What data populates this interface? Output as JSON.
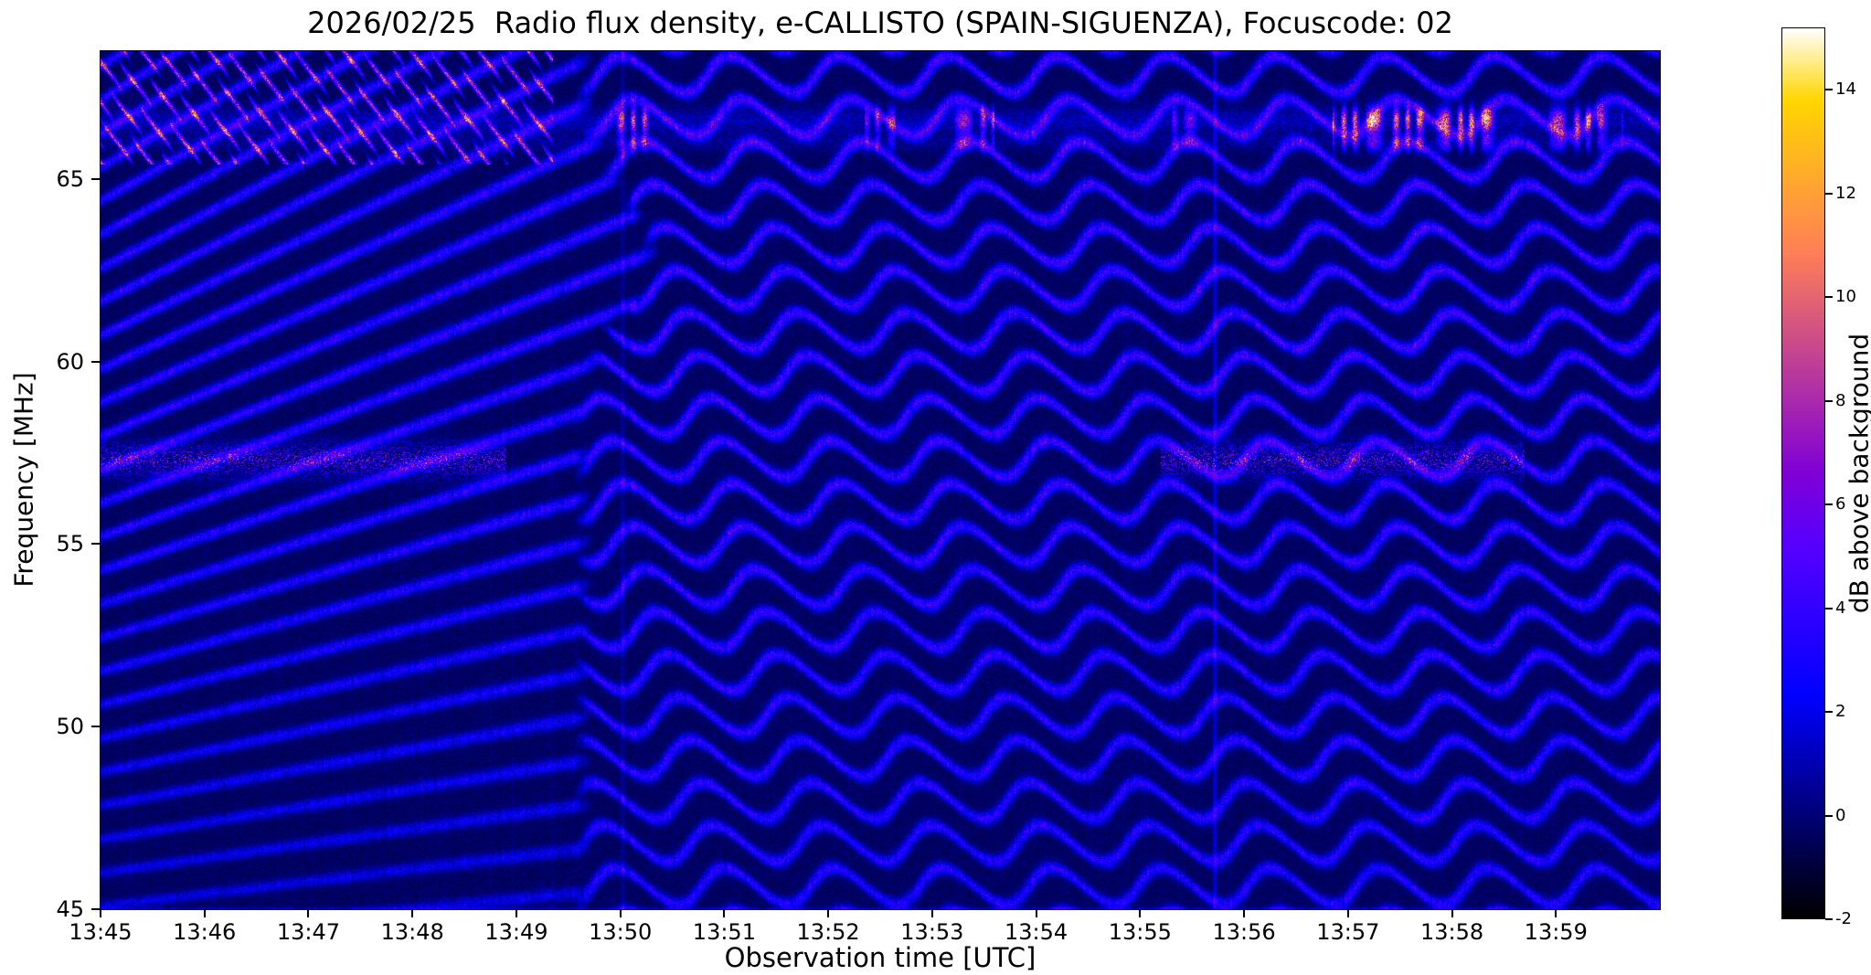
{
  "chart_data": {
    "type": "heatmap",
    "title": "2026/02/25  Radio flux density, e-CALLISTO (SPAIN-SIGUENZA), Focuscode: 02",
    "xlabel": "Observation time [UTC]",
    "ylabel": "Frequency [MHz]",
    "x_tick_labels": [
      "13:45",
      "13:46",
      "13:47",
      "13:48",
      "13:49",
      "13:50",
      "13:51",
      "13:52",
      "13:53",
      "13:54",
      "13:55",
      "13:56",
      "13:57",
      "13:58",
      "13:59"
    ],
    "x_range_min": [
      0,
      15
    ],
    "y_tick_values": [
      45,
      50,
      55,
      60,
      65
    ],
    "y_range_mhz": [
      45,
      68.5
    ],
    "grid": false,
    "colorbar": {
      "label": "dB above background",
      "tick_values": [
        -2,
        0,
        2,
        4,
        6,
        8,
        10,
        12,
        14
      ],
      "tick_labels": [
        "-2",
        "0",
        "2",
        "4",
        "6",
        "8",
        "10",
        "12",
        "14"
      ],
      "vmin": -2,
      "vmax": 15.2,
      "colormap": "gnuplot2",
      "position": "right"
    },
    "pattern": {
      "background_db": -0.7,
      "noise_db": 1.1,
      "bottom_edge_db": 2.6,
      "fringe": {
        "wavy": {
          "spacing_mhz": 1.17,
          "wave_period_min": 1.05,
          "wave_amp_mhz": 0.5,
          "phase_fspread": 0.55,
          "amp_db": 4.4,
          "start_min": 4.55,
          "transition_bump_min": 0.65,
          "transition_bump_center_mhz": 63.0,
          "transition_bump_width_mhz": 2.2
        },
        "diagonal": {
          "spacing_mhz": 0.92,
          "spacing_growth_per_min": 0.06,
          "drift_mhz_per_min": -2.6,
          "amp_db": 3.8
        }
      },
      "top_band": {
        "center_mhz": 66.6,
        "second_mhz": 66.0,
        "width_mhz": 0.34,
        "base_db": 1.6,
        "bursts": [
          {
            "start_min": 0.0,
            "end_min": 4.35,
            "amp_db": 11.0,
            "style": "dashed-diagonal"
          },
          {
            "start_min": 4.85,
            "end_min": 5.35,
            "amp_db": 11.0,
            "style": "modulated"
          },
          {
            "start_min": 7.35,
            "end_min": 7.65,
            "amp_db": 7.0,
            "style": "modulated"
          },
          {
            "start_min": 8.15,
            "end_min": 8.6,
            "amp_db": 8.5,
            "style": "modulated"
          },
          {
            "start_min": 10.3,
            "end_min": 10.55,
            "amp_db": 6.5,
            "style": "modulated"
          },
          {
            "start_min": 11.85,
            "end_min": 13.45,
            "amp_db": 12.5,
            "style": "modulated"
          },
          {
            "start_min": 13.9,
            "end_min": 14.65,
            "amp_db": 9.5,
            "style": "modulated"
          }
        ]
      },
      "speckle_band": {
        "center_mhz": 57.3,
        "width_mhz": 0.45,
        "amp_db": 4.5,
        "intervals": [
          [
            0.0,
            3.9
          ],
          [
            10.2,
            13.7
          ]
        ]
      },
      "vertical_streaks": [
        {
          "t_min": 10.72,
          "amp_db": 2.2
        },
        {
          "t_min": 5.02,
          "amp_db": 0.9
        }
      ]
    }
  }
}
